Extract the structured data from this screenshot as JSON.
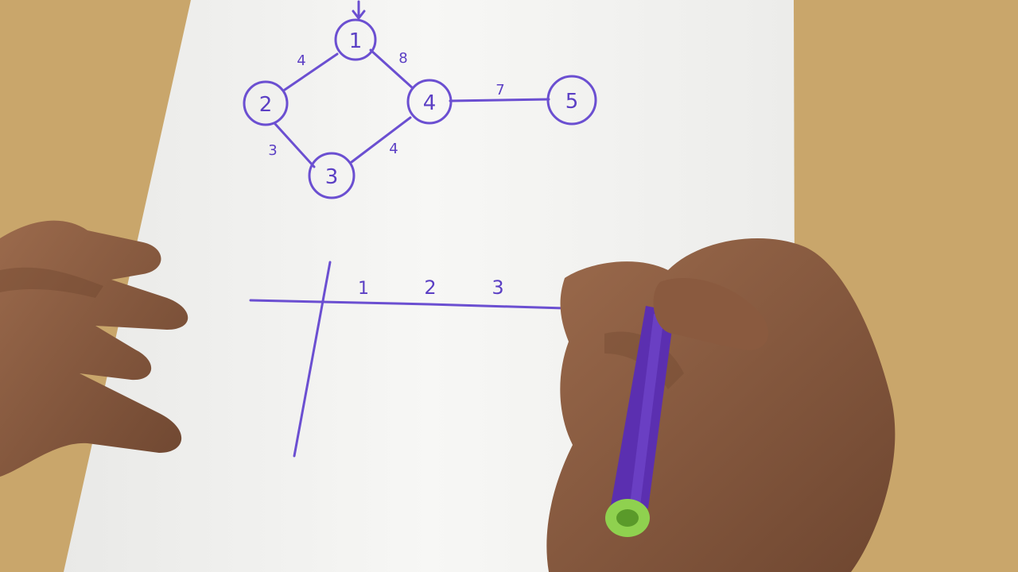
{
  "colors": {
    "table": "#c9a66b",
    "paper": "#f7f7f5",
    "ink": "#6b4fd1",
    "skin": "#8a5a3f",
    "marker_body": "#5b2fb0",
    "marker_cap": "#8fd14f"
  },
  "graph": {
    "start_marker": "down-arrow-icon",
    "nodes": [
      {
        "label": "1"
      },
      {
        "label": "2"
      },
      {
        "label": "3"
      },
      {
        "label": "4"
      },
      {
        "label": "5"
      }
    ],
    "edges": [
      {
        "from": "1",
        "to": "2",
        "weight": "4"
      },
      {
        "from": "1",
        "to": "4",
        "weight": "8"
      },
      {
        "from": "2",
        "to": "3",
        "weight": "3"
      },
      {
        "from": "3",
        "to": "4",
        "weight": "4"
      },
      {
        "from": "4",
        "to": "5",
        "weight": "7"
      }
    ]
  },
  "table": {
    "headers": [
      "1",
      "2",
      "3"
    ]
  }
}
